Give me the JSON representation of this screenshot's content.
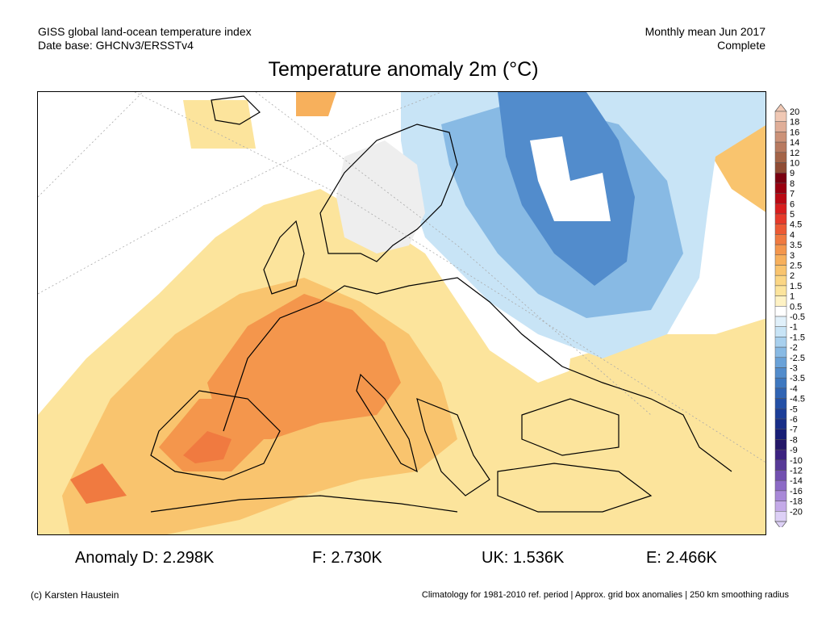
{
  "header": {
    "line1": "GISS global land-ocean temperature index",
    "line2": "Date base: GHCNv3/ERSSTv4",
    "period": "Monthly mean Jun 2017",
    "status": "Complete"
  },
  "title": "Temperature anomaly 2m (°C)",
  "legend": {
    "levels": [
      "20",
      "18",
      "16",
      "14",
      "12",
      "10",
      "9",
      "8",
      "7",
      "6",
      "5",
      "4.5",
      "4",
      "3.5",
      "3",
      "2.5",
      "2",
      "1.5",
      "1",
      "0.5",
      "-0.5",
      "-1",
      "-1.5",
      "-2",
      "-2.5",
      "-3",
      "-3.5",
      "-4",
      "-4.5",
      "-5",
      "-6",
      "-7",
      "-8",
      "-9",
      "-10",
      "-12",
      "-14",
      "-16",
      "-18",
      "-20"
    ],
    "colors": [
      "#f0c8b4",
      "#e0ae98",
      "#cc9278",
      "#b87a60",
      "#a46448",
      "#904c34",
      "#7a0010",
      "#9a0010",
      "#ba0a14",
      "#d81e1e",
      "#e63a2a",
      "#ec5a34",
      "#f07a40",
      "#f4964c",
      "#f7b05c",
      "#f9c46e",
      "#fbd684",
      "#fce49c",
      "#fef2c4",
      "#ffffff",
      "#e0f0fa",
      "#c8e4f6",
      "#a8d0ee",
      "#88bae4",
      "#6aa2d8",
      "#528ccc",
      "#3e78c0",
      "#3064b4",
      "#2450a6",
      "#1c3e98",
      "#182e88",
      "#181e76",
      "#241868",
      "#3c2280",
      "#583a98",
      "#7250b0",
      "#8c6ac6",
      "#a888d8",
      "#c4aae8",
      "#ddd0f6"
    ]
  },
  "stats": {
    "germany": "Anomaly D: 2.298K",
    "france": "F: 2.730K",
    "uk": "UK: 1.536K",
    "spain": "E: 2.466K"
  },
  "footer": {
    "credit": "(c) Karsten Haustein",
    "note": "Climatology for 1981-2010 ref. period | Approx. grid box anomalies | 250 km smoothing radius"
  }
}
